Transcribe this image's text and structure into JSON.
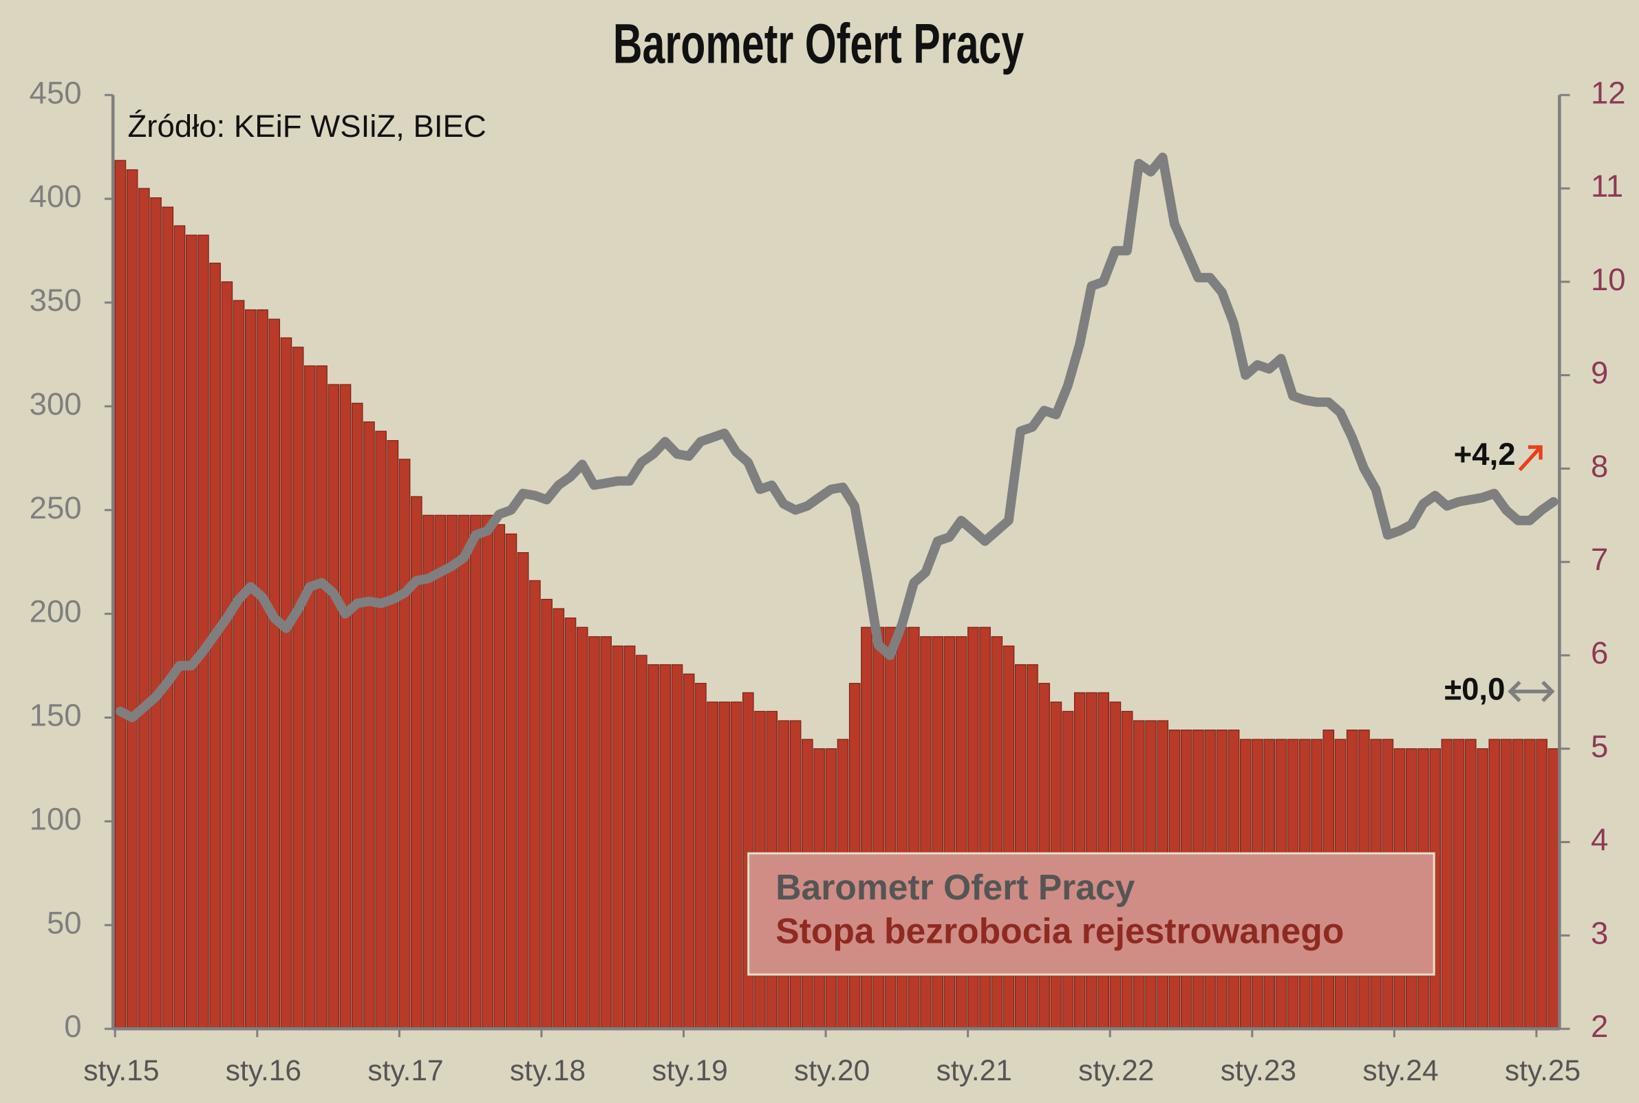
{
  "chart_data": {
    "type": "bar-line",
    "title": "Barometr Ofert Pracy",
    "annotations": [
      "Źródło: KEiF WSIiZ, BIEC",
      "+4,2",
      "±0,0"
    ],
    "categories": [
      "sty.15",
      null,
      null,
      null,
      null,
      null,
      null,
      null,
      null,
      null,
      null,
      null,
      "sty.16",
      null,
      null,
      null,
      null,
      null,
      null,
      null,
      null,
      null,
      null,
      null,
      "sty.17",
      null,
      null,
      null,
      null,
      null,
      null,
      null,
      null,
      null,
      null,
      null,
      "sty.18",
      null,
      null,
      null,
      null,
      null,
      null,
      null,
      null,
      null,
      null,
      null,
      "sty.19",
      null,
      null,
      null,
      null,
      null,
      null,
      null,
      null,
      null,
      null,
      null,
      "sty.20",
      null,
      null,
      null,
      null,
      null,
      null,
      null,
      null,
      null,
      null,
      null,
      "sty.21",
      null,
      null,
      null,
      null,
      null,
      null,
      null,
      null,
      null,
      null,
      null,
      "sty.22",
      null,
      null,
      null,
      null,
      null,
      null,
      null,
      null,
      null,
      null,
      null,
      "sty.23",
      null,
      null,
      null,
      null,
      null,
      null,
      null,
      null,
      null,
      null,
      null,
      "sty.24",
      null,
      null,
      null,
      null,
      null,
      null,
      null,
      null,
      null,
      null,
      null,
      "sty.25",
      null
    ],
    "series": [
      {
        "name": "Barometr Ofert Pracy",
        "type": "line",
        "axis": "y",
        "color": "#7f7f7f",
        "values": [
          153,
          150,
          155,
          160,
          167,
          175,
          175,
          182,
          190,
          198,
          207,
          213,
          208,
          198,
          193,
          202,
          213,
          215,
          210,
          200,
          205,
          206,
          205,
          207,
          210,
          216,
          217,
          220,
          223,
          227,
          238,
          240,
          248,
          250,
          258,
          257,
          255,
          262,
          266,
          272,
          262,
          263,
          264,
          264,
          273,
          277,
          283,
          277,
          276,
          283,
          285,
          287,
          278,
          273,
          260,
          262,
          253,
          250,
          252,
          256,
          260,
          261,
          252,
          220,
          185,
          180,
          195,
          215,
          220,
          235,
          237,
          245,
          240,
          235,
          240,
          245,
          288,
          290,
          298,
          296,
          310,
          330,
          358,
          360,
          375,
          375,
          417,
          413,
          420,
          388,
          375,
          362,
          362,
          355,
          340,
          315,
          320,
          318,
          323,
          305,
          303,
          302,
          302,
          297,
          285,
          270,
          260,
          238,
          240,
          243,
          253,
          257,
          252,
          254,
          255,
          256,
          258,
          250,
          245,
          245,
          250,
          254
        ]
      },
      {
        "name": "Stopa bezrobocia rejestrowanego",
        "type": "bar",
        "axis": "y2",
        "color": "#b83a28",
        "values": [
          11.3,
          11.2,
          11.0,
          10.9,
          10.8,
          10.6,
          10.5,
          10.5,
          10.2,
          10.0,
          9.8,
          9.7,
          9.7,
          9.6,
          9.4,
          9.3,
          9.1,
          9.1,
          8.9,
          8.9,
          8.7,
          8.5,
          8.4,
          8.3,
          8.1,
          7.7,
          7.5,
          7.5,
          7.5,
          7.5,
          7.5,
          7.5,
          7.4,
          7.3,
          7.1,
          6.8,
          6.6,
          6.5,
          6.4,
          6.3,
          6.2,
          6.2,
          6.1,
          6.1,
          6.0,
          5.9,
          5.9,
          5.9,
          5.8,
          5.7,
          5.5,
          5.5,
          5.5,
          5.6,
          5.4,
          5.4,
          5.3,
          5.3,
          5.1,
          5.0,
          5.0,
          5.1,
          5.7,
          6.3,
          6.3,
          6.3,
          6.3,
          6.3,
          6.2,
          6.2,
          6.2,
          6.2,
          6.3,
          6.3,
          6.2,
          6.1,
          5.9,
          5.9,
          5.7,
          5.5,
          5.4,
          5.6,
          5.6,
          5.6,
          5.5,
          5.4,
          5.3,
          5.3,
          5.3,
          5.2,
          5.2,
          5.2,
          5.2,
          5.2,
          5.2,
          5.1,
          5.1,
          5.1,
          5.1,
          5.1,
          5.1,
          5.1,
          5.2,
          5.1,
          5.2,
          5.2,
          5.1,
          5.1,
          5.0,
          5.0,
          5.0,
          5.0,
          5.1,
          5.1,
          5.1,
          5.0,
          5.1,
          5.1,
          5.1,
          5.1,
          5.1,
          5.0
        ]
      }
    ],
    "ylim": [
      0,
      450
    ],
    "yticks": [
      0,
      50,
      100,
      150,
      200,
      250,
      300,
      350,
      400,
      450
    ],
    "y2lim": [
      2,
      12
    ],
    "y2ticks": [
      2,
      3,
      4,
      5,
      6,
      7,
      8,
      9,
      10,
      11,
      12
    ],
    "legend": "bottom-right",
    "grid": false
  }
}
